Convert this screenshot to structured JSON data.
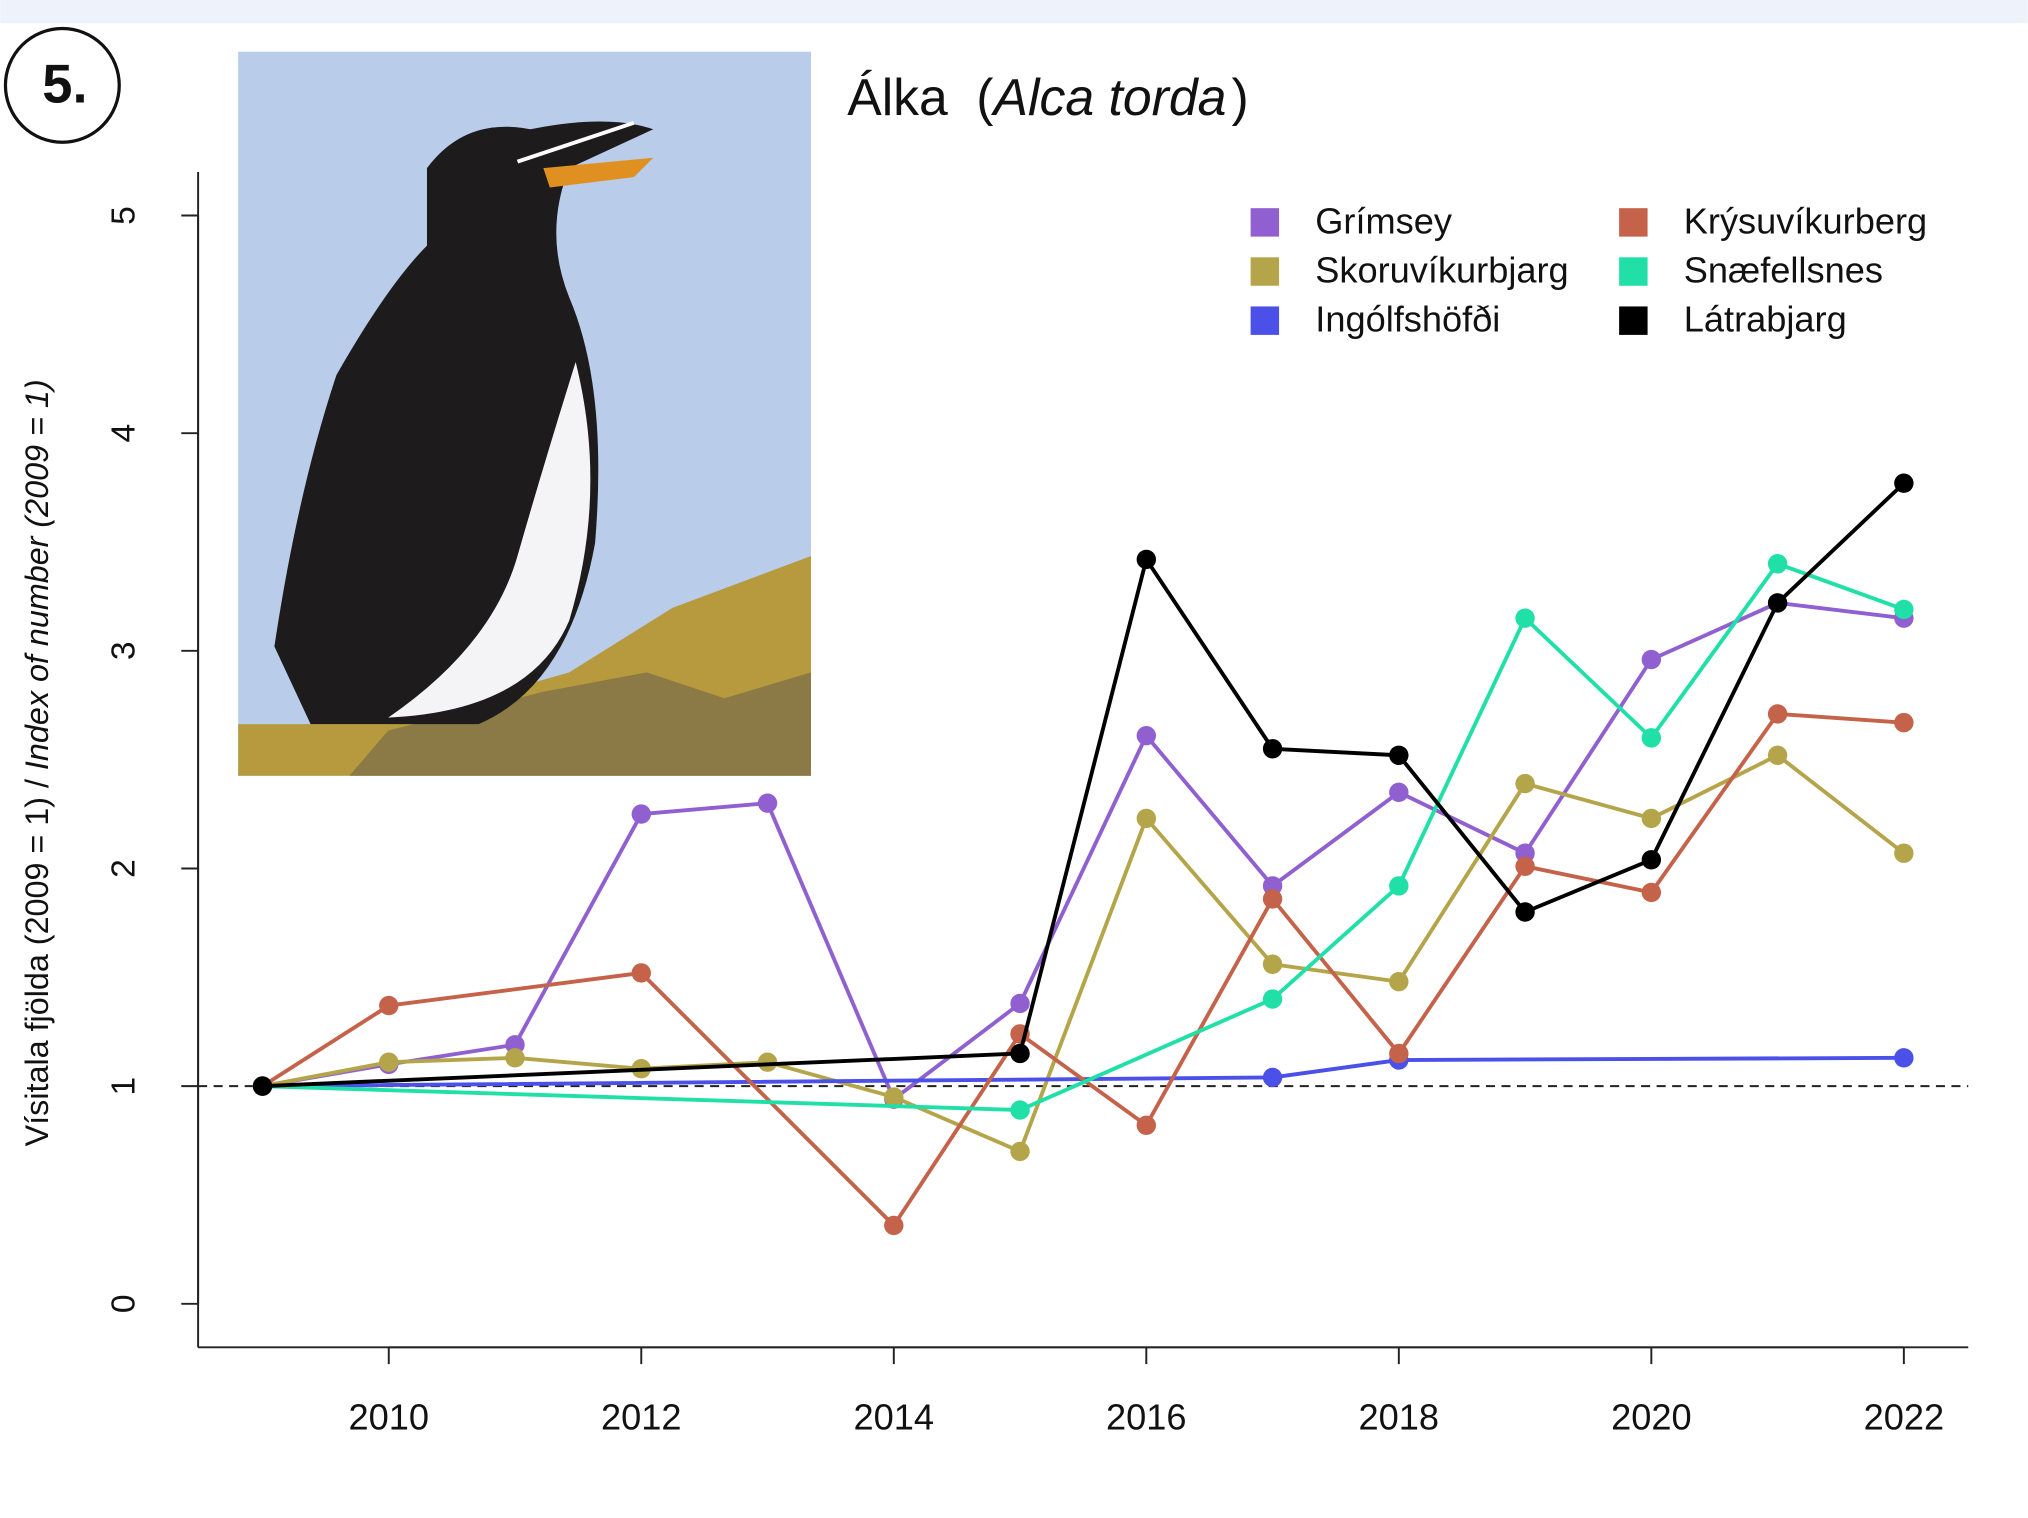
{
  "badge": "5.",
  "chart_data": {
    "type": "line",
    "title_parts": [
      "Álka",
      "(",
      "Alca torda",
      ")"
    ],
    "y_label_parts": [
      "Vísitala fjölda (2009 = 1) / ",
      "Index of number (2009 = 1)"
    ],
    "xlim": [
      2008.49,
      2022.51
    ],
    "ylim": [
      -0.2,
      5.2
    ],
    "xticks": [
      2010,
      2012,
      2014,
      2016,
      2018,
      2020,
      2022
    ],
    "yticks": [
      0,
      1,
      2,
      3,
      4,
      5
    ],
    "reference_line": 1,
    "legend": "top-right",
    "series": [
      {
        "name": "Grímsey",
        "color": "#9060d0",
        "x": [
          2009,
          2010,
          2011,
          2012,
          2013,
          2014,
          2015,
          2016,
          2017,
          2018,
          2019,
          2020,
          2021,
          2022
        ],
        "values": [
          1.0,
          1.1,
          1.19,
          2.25,
          2.3,
          0.94,
          1.38,
          2.61,
          1.92,
          2.35,
          2.07,
          2.96,
          3.22,
          3.15
        ]
      },
      {
        "name": "Skoruvíkurbjarg",
        "color": "#b5a54a",
        "x": [
          2009,
          2010,
          2011,
          2012,
          2013,
          2014,
          2015,
          2016,
          2017,
          2018,
          2019,
          2020,
          2021,
          2022
        ],
        "values": [
          1.0,
          1.11,
          1.13,
          1.08,
          1.11,
          0.95,
          0.7,
          2.23,
          1.56,
          1.48,
          2.39,
          2.23,
          2.52,
          2.07
        ]
      },
      {
        "name": "Ingólfshöfði",
        "color": "#4a50e8",
        "x": [
          2009,
          2017,
          2018,
          2022
        ],
        "values": [
          1.0,
          1.04,
          1.12,
          1.13
        ]
      },
      {
        "name": "Krýsuvíkurberg",
        "color": "#c4624a",
        "x": [
          2009,
          2010,
          2012,
          2014,
          2015,
          2016,
          2017,
          2018,
          2019,
          2020,
          2021,
          2022
        ],
        "values": [
          1.0,
          1.37,
          1.52,
          0.36,
          1.24,
          0.82,
          1.86,
          1.15,
          2.01,
          1.89,
          2.71,
          2.67
        ]
      },
      {
        "name": "Snæfellsnes",
        "color": "#20e0a8",
        "x": [
          2009,
          2015,
          2017,
          2018,
          2019,
          2020,
          2021,
          2022
        ],
        "values": [
          1.0,
          0.89,
          1.4,
          1.92,
          3.15,
          2.6,
          3.4,
          3.19
        ]
      },
      {
        "name": "Látrabjarg",
        "color": "#000000",
        "x": [
          2009,
          2015,
          2016,
          2017,
          2018,
          2019,
          2020,
          2021,
          2022
        ],
        "values": [
          1.0,
          1.15,
          3.42,
          2.55,
          2.52,
          1.8,
          2.04,
          3.22,
          3.77
        ]
      }
    ]
  }
}
